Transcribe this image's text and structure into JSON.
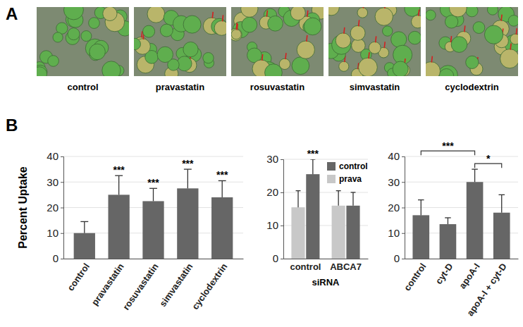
{
  "panel_a": {
    "label": "A",
    "captions": [
      "control",
      "pravastatin",
      "rosuvastatin",
      "simvastatin",
      "cyclodextrin"
    ]
  },
  "panel_b": {
    "label": "B"
  },
  "chart_data": [
    {
      "type": "bar",
      "categories": [
        "control",
        "pravastatin",
        "rosuvastatin",
        "simvastatin",
        "cyclodextrin"
      ],
      "values": [
        10,
        25,
        22.5,
        27.5,
        24
      ],
      "errors": [
        4.5,
        7.5,
        5,
        7.5,
        6.5
      ],
      "color": "#666666",
      "y_label": "Percent Uptake",
      "ylim": [
        0,
        40
      ],
      "yticks": [
        0,
        10,
        20,
        30,
        40
      ],
      "grid": true,
      "annotations": [
        {
          "text": "***",
          "category": "pravastatin"
        },
        {
          "text": "***",
          "category": "rosuvastatin"
        },
        {
          "text": "***",
          "category": "simvastatin"
        },
        {
          "text": "***",
          "category": "cyclodextrin"
        }
      ]
    },
    {
      "type": "bar",
      "categories": [
        "control",
        "ABCA7"
      ],
      "x_label": "siRNA",
      "series": [
        {
          "name": "control",
          "color": "#666666",
          "values": [
            25.5,
            16
          ],
          "errors": [
            4.5,
            4
          ]
        },
        {
          "name": "prava",
          "color": "#c8c8c8",
          "values": [
            15.5,
            16
          ],
          "errors": [
            5,
            4.5
          ]
        }
      ],
      "ylim": [
        0,
        30
      ],
      "yticks": [
        0,
        10,
        20,
        30
      ],
      "grid": true,
      "legend": "upper right",
      "annotations": [
        {
          "text": "***",
          "category": "control",
          "series": "control"
        }
      ]
    },
    {
      "type": "bar",
      "categories": [
        "control",
        "cyt-D",
        "apoA-I",
        "apoA-I + cyt-D"
      ],
      "values": [
        17,
        13.5,
        30,
        18
      ],
      "errors": [
        6,
        2.5,
        5,
        7
      ],
      "color": "#666666",
      "ylim": [
        0,
        40
      ],
      "yticks": [
        0,
        10,
        20,
        30,
        40
      ],
      "grid": true,
      "annotations": [
        {
          "text": "***",
          "between": [
            "control",
            "apoA-I"
          ]
        },
        {
          "text": "*",
          "between": [
            "apoA-I",
            "apoA-I + cyt-D"
          ]
        }
      ]
    }
  ]
}
